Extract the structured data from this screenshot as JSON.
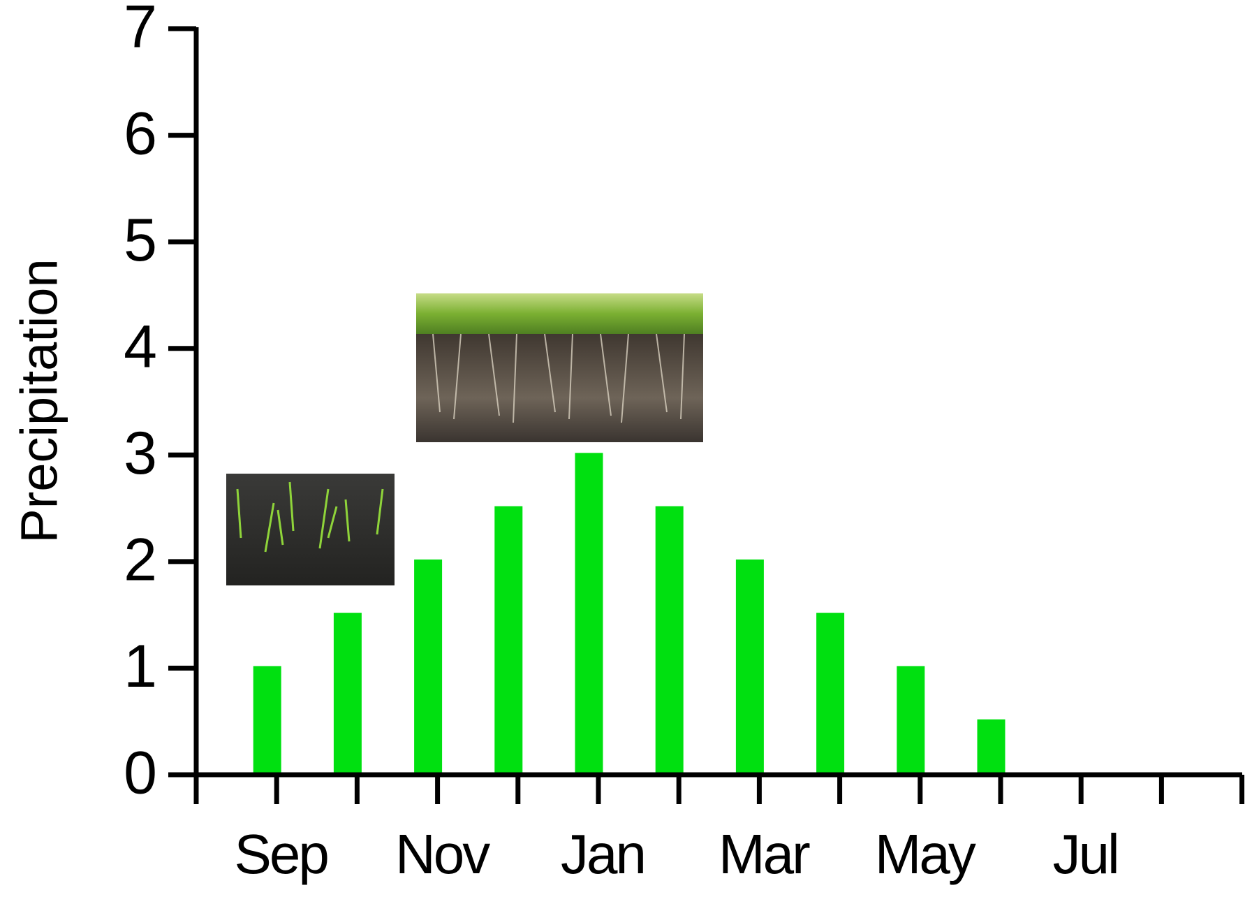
{
  "chart_data": {
    "type": "bar",
    "y_label": "Precipitation",
    "categories": [
      "Sep",
      null,
      "Nov",
      null,
      "Jan",
      null,
      "Mar",
      null,
      "May",
      null,
      "Jul",
      null
    ],
    "series": [
      {
        "color": "#00e010",
        "values": [
          1,
          1.5,
          2,
          2.5,
          3,
          2.5,
          2,
          1.5,
          1,
          0.5,
          0,
          0
        ]
      },
      {
        "color": "#1a00e0",
        "values": [
          0,
          0,
          0,
          0,
          0,
          0,
          0,
          0,
          0,
          0,
          0,
          0
        ]
      }
    ],
    "ylim": [
      0,
      7
    ],
    "yticks": [
      0,
      1,
      2,
      3,
      4,
      5,
      6,
      7
    ],
    "grid": false
  }
}
